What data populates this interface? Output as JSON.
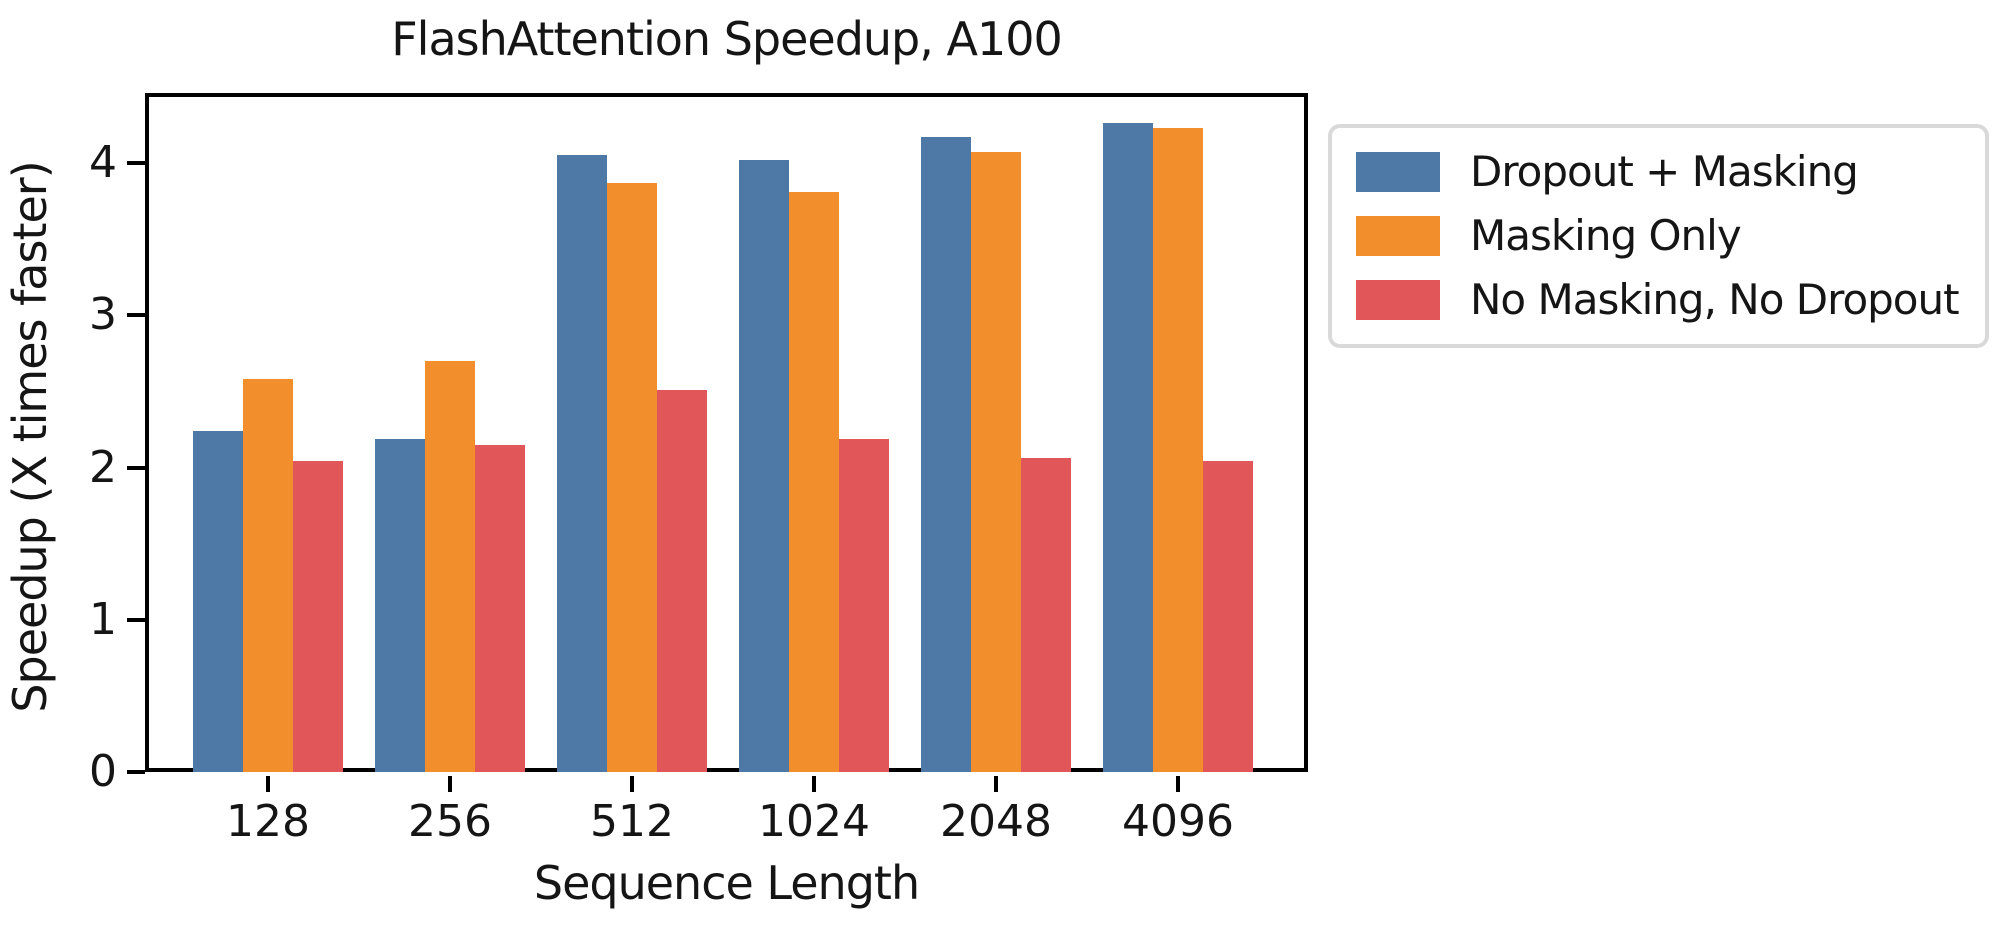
{
  "chart_data": {
    "type": "bar",
    "title": "FlashAttention Speedup, A100",
    "xlabel": "Sequence Length",
    "ylabel": "Speedup (X times faster)",
    "categories": [
      "128",
      "256",
      "512",
      "1024",
      "2048",
      "4096"
    ],
    "series": [
      {
        "name": "Dropout + Masking",
        "color": "#4e79a7",
        "values": [
          2.24,
          2.19,
          4.05,
          4.02,
          4.17,
          4.26
        ]
      },
      {
        "name": "Masking Only",
        "color": "#f28e2b",
        "values": [
          2.58,
          2.7,
          3.87,
          3.81,
          4.07,
          4.23
        ]
      },
      {
        "name": "No Masking, No Dropout",
        "color": "#e15759",
        "values": [
          2.04,
          2.15,
          2.51,
          2.19,
          2.06,
          2.04
        ]
      }
    ],
    "y_ticks": [
      0,
      1,
      2,
      3,
      4
    ],
    "ylim": [
      0,
      4.46
    ],
    "grid": false,
    "legend_position": "outside-top-right",
    "axis_color": "#000000",
    "text_color": "#151515",
    "legend_border_color": "#d9d9d9"
  }
}
